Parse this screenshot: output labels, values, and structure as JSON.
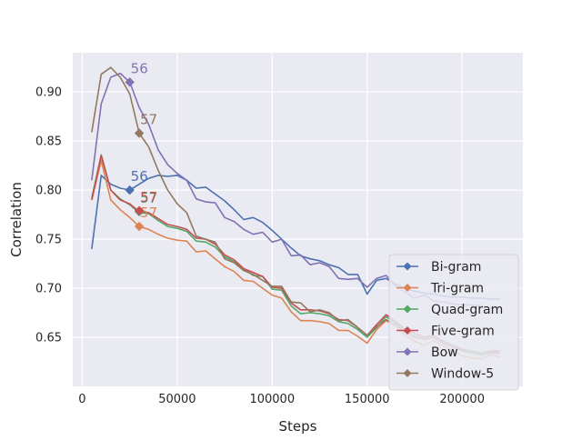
{
  "chart_data": {
    "type": "line",
    "title": "",
    "xlabel": "Steps",
    "ylabel": "Correlation",
    "xlim": [
      -5000,
      232000
    ],
    "ylim": [
      0.6,
      0.94
    ],
    "xticks": [
      0,
      50000,
      100000,
      150000,
      200000
    ],
    "xtick_labels": [
      "0",
      "50000",
      "100000",
      "150000",
      "200000"
    ],
    "yticks": [
      0.65,
      0.7,
      0.75,
      0.8,
      0.85,
      0.9
    ],
    "ytick_labels": [
      "0.65",
      "0.70",
      "0.75",
      "0.80",
      "0.85",
      "0.90"
    ],
    "grid": true,
    "style": "seaborn-darkgrid",
    "legend_position": "lower-right",
    "x": [
      5000,
      10000,
      15000,
      20000,
      25000,
      30000,
      35000,
      40000,
      45000,
      50000,
      55000,
      60000,
      65000,
      70000,
      75000,
      80000,
      85000,
      90000,
      95000,
      100000,
      105000,
      110000,
      115000,
      120000,
      125000,
      130000,
      135000,
      140000,
      145000,
      150000,
      155000,
      160000,
      165000,
      170000,
      175000,
      180000,
      185000,
      190000,
      195000,
      200000,
      205000,
      210000,
      215000,
      220000
    ],
    "series": [
      {
        "name": "Bi-gram",
        "color": "#4c72b0",
        "values": [
          0.74,
          0.815,
          0.806,
          0.802,
          0.8,
          0.806,
          0.812,
          0.815,
          0.814,
          0.815,
          0.81,
          0.802,
          0.803,
          0.796,
          0.789,
          0.78,
          0.77,
          0.772,
          0.767,
          0.759,
          0.75,
          0.741,
          0.733,
          0.73,
          0.728,
          0.724,
          0.721,
          0.714,
          0.714,
          0.694,
          0.708,
          0.71,
          0.704,
          0.7,
          0.697,
          0.695,
          0.694,
          0.692,
          0.691,
          0.691,
          0.69,
          0.69,
          0.689,
          0.689
        ],
        "marker": {
          "x": 25000,
          "y": 0.8,
          "label": "56"
        }
      },
      {
        "name": "Tri-gram",
        "color": "#dd8452",
        "values": [
          0.79,
          0.83,
          0.79,
          0.78,
          0.772,
          0.763,
          0.76,
          0.755,
          0.751,
          0.749,
          0.748,
          0.737,
          0.738,
          0.73,
          0.722,
          0.717,
          0.708,
          0.707,
          0.7,
          0.693,
          0.69,
          0.676,
          0.667,
          0.667,
          0.666,
          0.664,
          0.657,
          0.657,
          0.651,
          0.644,
          0.658,
          0.667,
          0.662,
          0.652,
          0.646,
          0.642,
          0.647,
          0.641,
          0.637,
          0.631,
          0.629,
          0.628,
          0.632,
          0.63
        ],
        "marker": {
          "x": 30000,
          "y": 0.763,
          "label": "57"
        }
      },
      {
        "name": "Quad-gram",
        "color": "#55a868",
        "values": [
          0.792,
          0.836,
          0.8,
          0.791,
          0.785,
          0.777,
          0.776,
          0.769,
          0.763,
          0.761,
          0.758,
          0.748,
          0.747,
          0.742,
          0.732,
          0.727,
          0.72,
          0.713,
          0.712,
          0.699,
          0.698,
          0.682,
          0.674,
          0.675,
          0.674,
          0.672,
          0.666,
          0.664,
          0.658,
          0.65,
          0.66,
          0.671,
          0.664,
          0.656,
          0.651,
          0.648,
          0.65,
          0.644,
          0.64,
          0.636,
          0.634,
          0.632,
          0.634,
          0.634
        ],
        "marker": {
          "x": 30000,
          "y": 0.778,
          "label": "57"
        }
      },
      {
        "name": "Five-gram",
        "color": "#c44e52",
        "values": [
          0.79,
          0.835,
          0.8,
          0.79,
          0.786,
          0.778,
          0.777,
          0.771,
          0.765,
          0.763,
          0.76,
          0.751,
          0.75,
          0.745,
          0.734,
          0.729,
          0.72,
          0.716,
          0.712,
          0.701,
          0.7,
          0.685,
          0.678,
          0.678,
          0.677,
          0.674,
          0.668,
          0.667,
          0.66,
          0.652,
          0.663,
          0.673,
          0.666,
          0.658,
          0.654,
          0.65,
          0.652,
          0.646,
          0.642,
          0.638,
          0.636,
          0.634,
          0.636,
          0.636
        ],
        "marker": {
          "x": 30000,
          "y": 0.779,
          "label": "57"
        }
      },
      {
        "name": "Bow",
        "color": "#8172b3",
        "values": [
          0.81,
          0.888,
          0.915,
          0.919,
          0.91,
          0.884,
          0.867,
          0.841,
          0.826,
          0.817,
          0.81,
          0.791,
          0.788,
          0.787,
          0.772,
          0.768,
          0.76,
          0.755,
          0.757,
          0.747,
          0.75,
          0.733,
          0.734,
          0.724,
          0.726,
          0.722,
          0.71,
          0.709,
          0.71,
          0.701,
          0.71,
          0.713,
          0.702,
          0.696,
          0.69,
          0.693,
          0.687,
          0.686,
          0.684,
          0.683,
          0.683,
          0.682,
          0.68,
          0.681
        ],
        "marker": {
          "x": 25000,
          "y": 0.91,
          "label": "56"
        }
      },
      {
        "name": "Window-5",
        "color": "#937860",
        "values": [
          0.859,
          0.918,
          0.925,
          0.915,
          0.898,
          0.858,
          0.844,
          0.82,
          0.8,
          0.786,
          0.777,
          0.753,
          0.75,
          0.747,
          0.73,
          0.726,
          0.718,
          0.714,
          0.708,
          0.702,
          0.702,
          0.686,
          0.685,
          0.676,
          0.678,
          0.675,
          0.667,
          0.668,
          0.66,
          0.652,
          0.661,
          0.668,
          0.662,
          0.655,
          0.65,
          0.648,
          0.65,
          0.644,
          0.64,
          0.637,
          0.636,
          0.634,
          0.635,
          0.634
        ],
        "marker": {
          "x": 30000,
          "y": 0.858,
          "label": "57"
        }
      }
    ]
  }
}
